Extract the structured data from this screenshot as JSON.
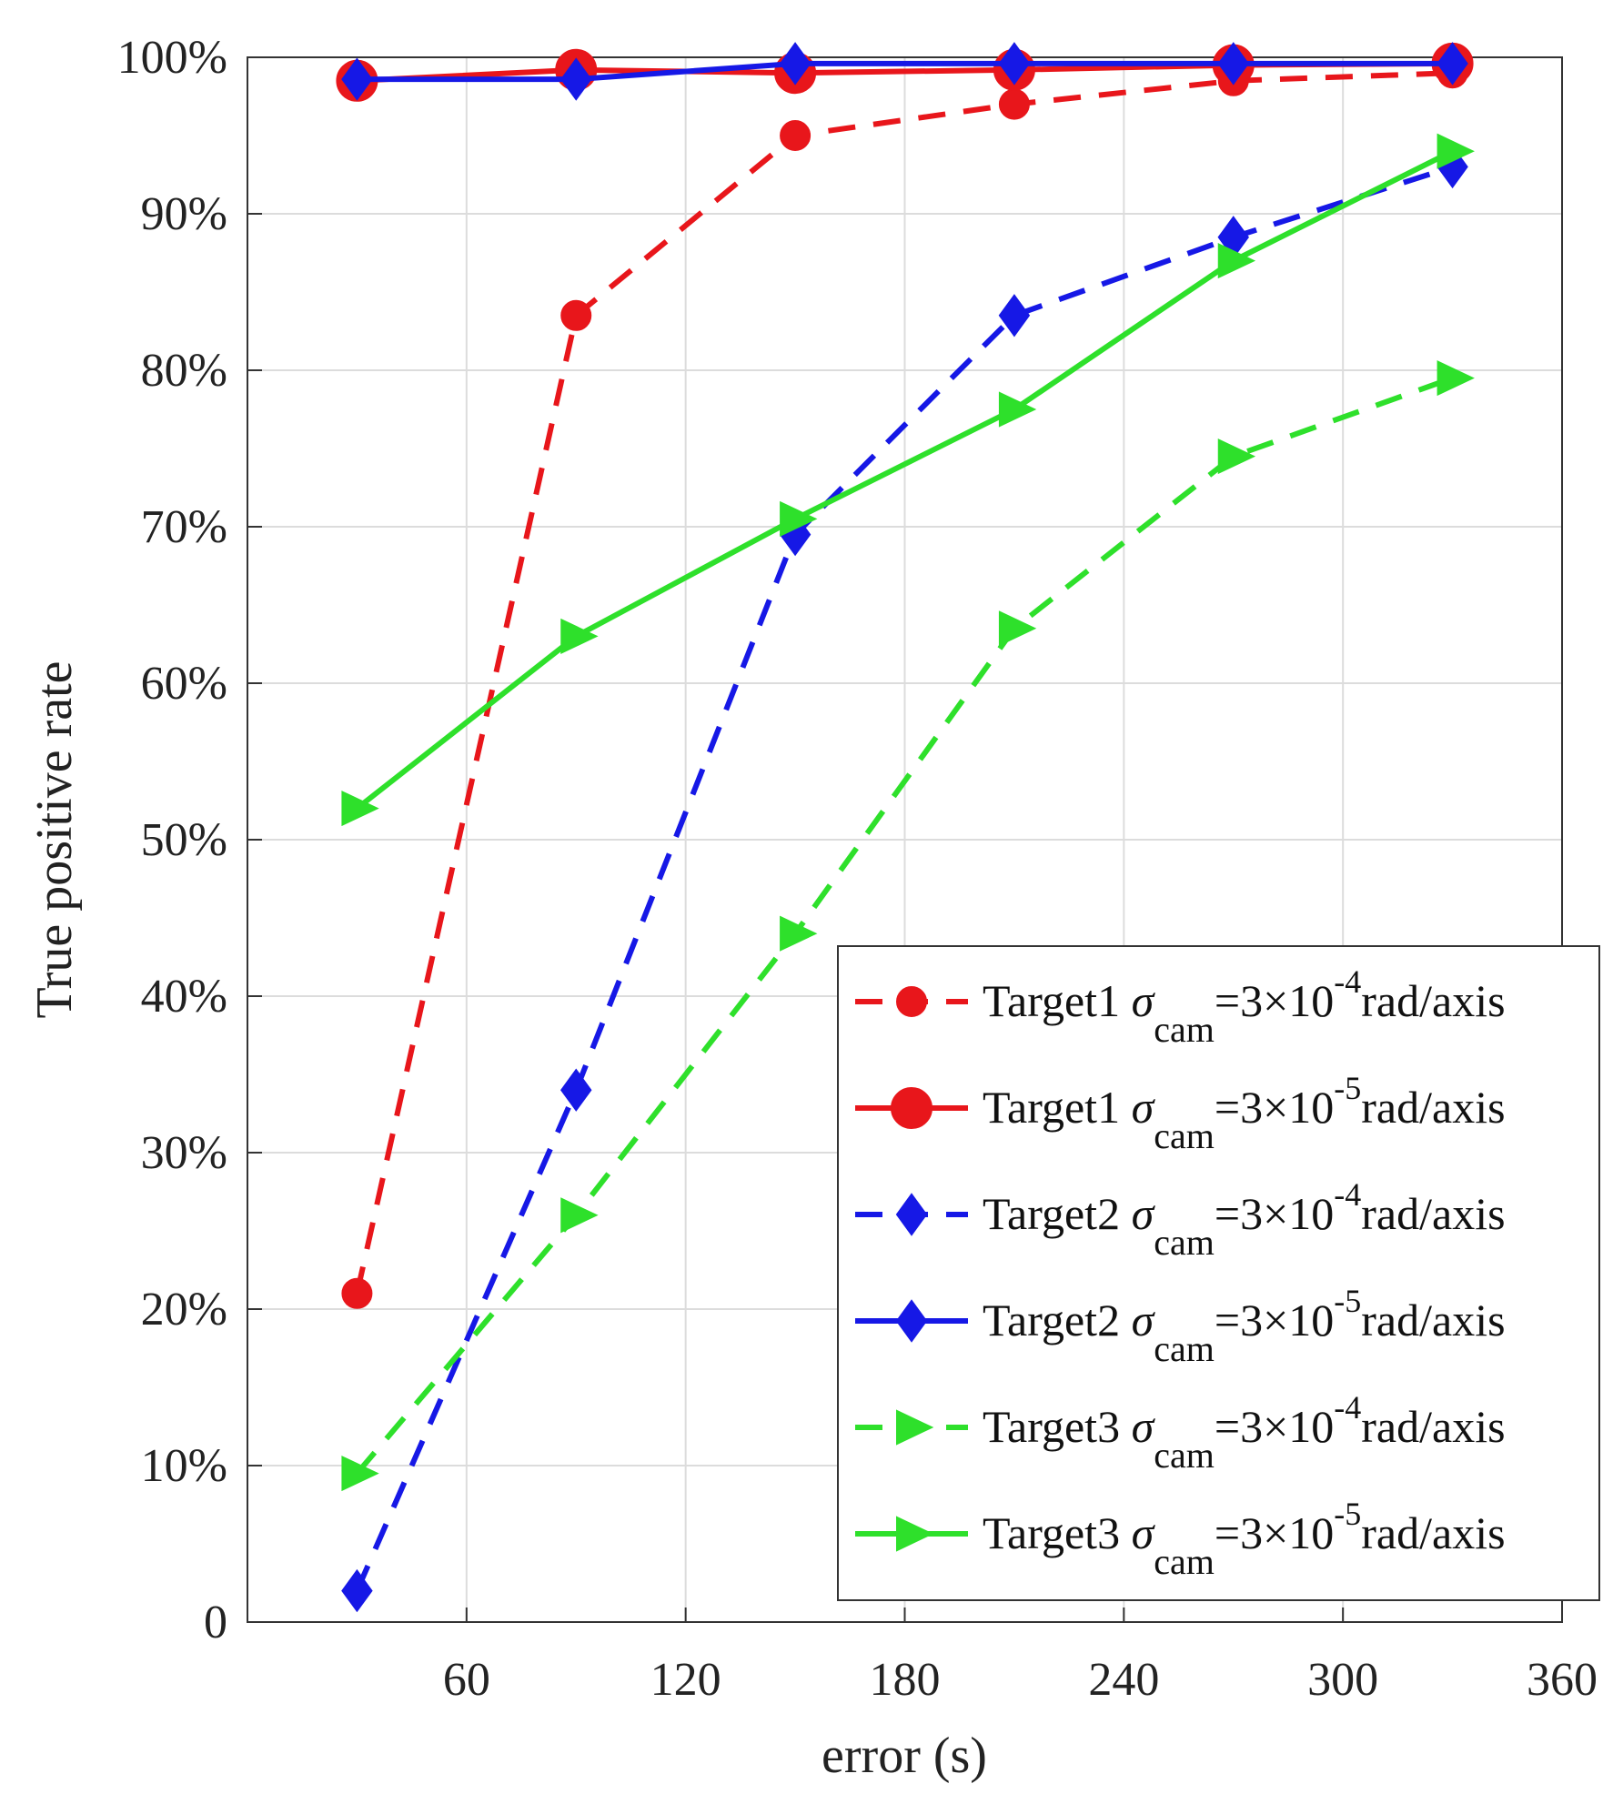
{
  "chart_data": {
    "type": "line",
    "title": "",
    "xlabel": "error (s)",
    "ylabel": "True positive rate",
    "xlim": [
      0,
      360
    ],
    "ylim": [
      0,
      100
    ],
    "x_ticks": [
      60,
      120,
      180,
      240,
      300,
      360
    ],
    "y_ticks": [
      0,
      10,
      20,
      30,
      40,
      50,
      60,
      70,
      80,
      90,
      100
    ],
    "x_tick_labels": [
      "60",
      "120",
      "180",
      "240",
      "300",
      "360"
    ],
    "y_tick_labels": [
      "0",
      "10%",
      "20%",
      "30%",
      "40%",
      "50%",
      "60%",
      "70%",
      "80%",
      "90%",
      "100%"
    ],
    "grid": true,
    "legend_position": "bottom-right",
    "x": [
      30,
      90,
      150,
      210,
      270,
      330
    ],
    "series": [
      {
        "id": "t1-4",
        "target": "Target1",
        "sigma": "σ",
        "sub": "cam",
        "eq": "=3×10",
        "exp": "-4",
        "unit": "rad/axis",
        "color": "#e8161b",
        "dashed": true,
        "marker": "circle-small",
        "values": [
          21,
          83.5,
          95,
          97,
          98.5,
          99
        ]
      },
      {
        "id": "t1-5",
        "target": "Target1",
        "sigma": "σ",
        "sub": "cam",
        "eq": "=3×10",
        "exp": "-5",
        "unit": "rad/axis",
        "color": "#e8161b",
        "dashed": false,
        "marker": "circle-large",
        "values": [
          98.5,
          99.2,
          99,
          99.2,
          99.5,
          99.6
        ]
      },
      {
        "id": "t2-4",
        "target": "Target2",
        "sigma": "σ",
        "sub": "cam",
        "eq": "=3×10",
        "exp": "-4",
        "unit": "rad/axis",
        "color": "#1618e6",
        "dashed": true,
        "marker": "diamond",
        "values": [
          2,
          34,
          69.5,
          83.5,
          88.5,
          93
        ]
      },
      {
        "id": "t2-5",
        "target": "Target2",
        "sigma": "σ",
        "sub": "cam",
        "eq": "=3×10",
        "exp": "-5",
        "unit": "rad/axis",
        "color": "#1618e6",
        "dashed": false,
        "marker": "diamond",
        "values": [
          98.6,
          98.6,
          99.6,
          99.6,
          99.6,
          99.6
        ]
      },
      {
        "id": "t3-4",
        "target": "Target3",
        "sigma": "σ",
        "sub": "cam",
        "eq": "=3×10",
        "exp": "-4",
        "unit": "rad/axis",
        "color": "#2ee02b",
        "dashed": true,
        "marker": "triangle-right",
        "values": [
          9.5,
          26,
          44,
          63.5,
          74.5,
          79.5
        ]
      },
      {
        "id": "t3-5",
        "target": "Target3",
        "sigma": "σ",
        "sub": "cam",
        "eq": "=3×10",
        "exp": "-5",
        "unit": "rad/axis",
        "color": "#2ee02b",
        "dashed": false,
        "marker": "triangle-right",
        "values": [
          52,
          63,
          70.5,
          77.5,
          87,
          94
        ]
      }
    ]
  }
}
